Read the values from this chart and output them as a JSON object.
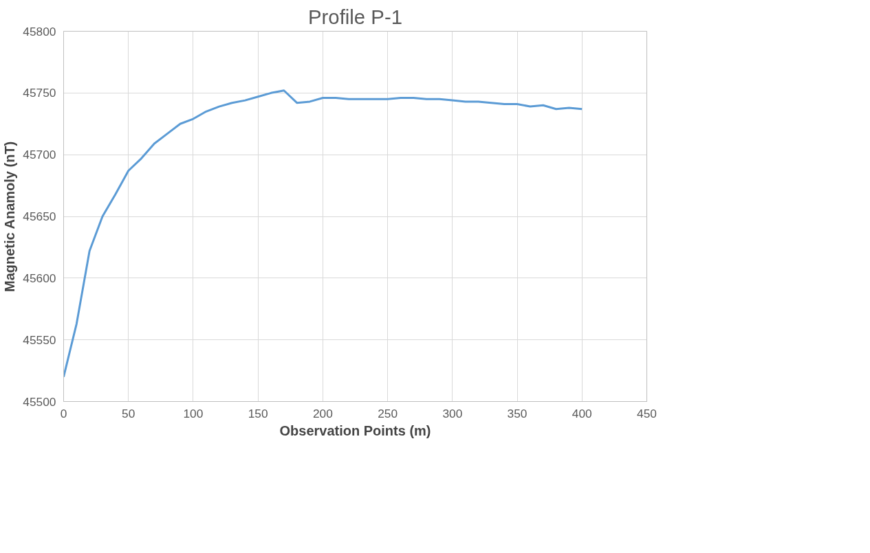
{
  "chart_data": {
    "type": "line",
    "title": "Profile P-1",
    "xlabel": "Observation Points (m)",
    "ylabel": "Magnetic Anamoly (nT)",
    "x": [
      0,
      10,
      20,
      30,
      40,
      50,
      60,
      70,
      80,
      90,
      100,
      110,
      120,
      130,
      140,
      150,
      160,
      170,
      180,
      190,
      200,
      210,
      220,
      230,
      240,
      250,
      260,
      270,
      280,
      290,
      300,
      310,
      320,
      330,
      340,
      350,
      360,
      370,
      380,
      390,
      400
    ],
    "series": [
      {
        "color": "#5b9bd5",
        "values": [
          45520,
          45563,
          45622,
          45650,
          45668,
          45687,
          45697,
          45709,
          45717,
          45725,
          45729,
          45735,
          45739,
          45742,
          45744,
          45747,
          45750,
          45752,
          45742,
          45743,
          45746,
          45746,
          45745,
          45745,
          45745,
          45745,
          45746,
          45746,
          45745,
          45745,
          45744,
          45743,
          45743,
          45742,
          45741,
          45741,
          45739,
          45740,
          45737,
          45738,
          45737
        ]
      }
    ],
    "xlim": [
      0,
      450
    ],
    "xticks": [
      0,
      50,
      100,
      150,
      200,
      250,
      300,
      350,
      400,
      450
    ],
    "ylim": [
      45500,
      45800
    ],
    "yticks": [
      45500,
      45550,
      45600,
      45650,
      45700,
      45750,
      45800
    ],
    "grid": true,
    "marker": "none",
    "line_style": "solid"
  }
}
